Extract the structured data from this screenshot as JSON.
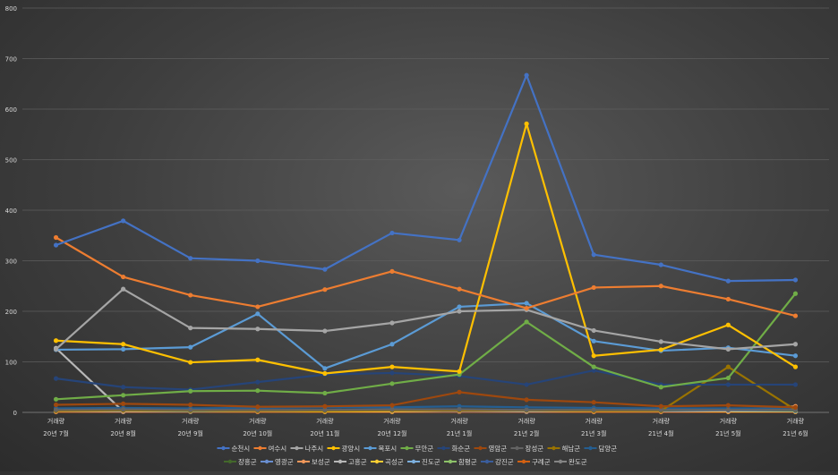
{
  "chart_data": {
    "type": "line",
    "title": "",
    "xlabel": "",
    "ylabel": "",
    "ylim": [
      0,
      800
    ],
    "yticks": [
      0,
      100,
      200,
      300,
      400,
      500,
      600,
      700,
      800
    ],
    "grid": true,
    "legend_position": "bottom",
    "categories": [
      {
        "top": "거래량",
        "bottom": "20년 7월"
      },
      {
        "top": "거래량",
        "bottom": "20년 8월"
      },
      {
        "top": "거래량",
        "bottom": "20년 9월"
      },
      {
        "top": "거래량",
        "bottom": "20년 10월"
      },
      {
        "top": "거래량",
        "bottom": "20년 11월"
      },
      {
        "top": "거래량",
        "bottom": "20년 12월"
      },
      {
        "top": "거래량",
        "bottom": "21년 1월"
      },
      {
        "top": "거래량",
        "bottom": "21년 2월"
      },
      {
        "top": "거래량",
        "bottom": "21년 3월"
      },
      {
        "top": "거래량",
        "bottom": "21년 4월"
      },
      {
        "top": "거래량",
        "bottom": "21년 5월"
      },
      {
        "top": "거래량",
        "bottom": "21년 6월"
      }
    ],
    "series": [
      {
        "name": "순천시",
        "color": "#4472c4",
        "values": [
          331,
          379,
          305,
          300,
          283,
          355,
          341,
          667,
          312,
          292,
          260,
          262
        ]
      },
      {
        "name": "여수시",
        "color": "#ed7d31",
        "values": [
          346,
          268,
          232,
          209,
          243,
          279,
          244,
          206,
          247,
          250,
          224,
          191
        ]
      },
      {
        "name": "나주시",
        "color": "#a5a5a5",
        "values": [
          125,
          244,
          167,
          165,
          161,
          177,
          200,
          203,
          162,
          140,
          125,
          135
        ]
      },
      {
        "name": "광양시",
        "color": "#ffc000",
        "values": [
          142,
          135,
          99,
          104,
          77,
          90,
          81,
          571,
          112,
          124,
          173,
          90
        ]
      },
      {
        "name": "목포시",
        "color": "#5b9bd5",
        "values": [
          124,
          125,
          129,
          195,
          87,
          135,
          209,
          216,
          141,
          122,
          128,
          112
        ]
      },
      {
        "name": "무안군",
        "color": "#70ad47",
        "values": [
          26,
          34,
          42,
          43,
          38,
          57,
          75,
          179,
          90,
          50,
          68,
          235
        ]
      },
      {
        "name": "화순군",
        "color": "#264478",
        "values": [
          67,
          50,
          45,
          60,
          75,
          78,
          72,
          55,
          83,
          55,
          55,
          55
        ]
      },
      {
        "name": "영암군",
        "color": "#9e480e",
        "values": [
          15,
          17,
          15,
          11,
          12,
          14,
          40,
          25,
          20,
          12,
          14,
          10
        ]
      },
      {
        "name": "장성군",
        "color": "#636363",
        "values": [
          5,
          6,
          5,
          5,
          5,
          6,
          6,
          5,
          5,
          5,
          5,
          5
        ]
      },
      {
        "name": "해남군",
        "color": "#997300",
        "values": [
          3,
          4,
          3,
          3,
          3,
          4,
          4,
          4,
          3,
          3,
          90,
          5
        ]
      },
      {
        "name": "담양군",
        "color": "#255e91",
        "values": [
          8,
          9,
          8,
          9,
          10,
          10,
          12,
          10,
          9,
          8,
          8,
          8
        ]
      },
      {
        "name": "장흥군",
        "color": "#43682b",
        "values": [
          4,
          5,
          4,
          4,
          5,
          5,
          6,
          5,
          5,
          4,
          5,
          4
        ]
      },
      {
        "name": "영광군",
        "color": "#698ed0",
        "values": [
          3,
          4,
          3,
          3,
          4,
          4,
          5,
          4,
          4,
          3,
          4,
          3
        ]
      },
      {
        "name": "보성군",
        "color": "#f1975a",
        "values": [
          2,
          3,
          3,
          2,
          3,
          3,
          3,
          3,
          2,
          2,
          3,
          12
        ]
      },
      {
        "name": "고흥군",
        "color": "#b7b7b7",
        "values": [
          127,
          2,
          3,
          2,
          3,
          3,
          3,
          3,
          2,
          2,
          3,
          3
        ]
      },
      {
        "name": "곡성군",
        "color": "#ffcd33",
        "values": [
          2,
          6,
          3,
          2,
          2,
          2,
          3,
          3,
          2,
          2,
          2,
          2
        ]
      },
      {
        "name": "진도군",
        "color": "#7cafdd",
        "values": [
          2,
          2,
          2,
          2,
          2,
          2,
          3,
          2,
          2,
          2,
          2,
          2
        ]
      },
      {
        "name": "함평군",
        "color": "#8cc168",
        "values": [
          2,
          3,
          2,
          2,
          3,
          3,
          3,
          3,
          2,
          2,
          3,
          2
        ]
      },
      {
        "name": "강진군",
        "color": "#3a5d9c",
        "values": [
          2,
          2,
          2,
          2,
          2,
          2,
          2,
          2,
          2,
          2,
          2,
          2
        ]
      },
      {
        "name": "구례군",
        "color": "#d26012",
        "values": [
          1,
          1,
          1,
          1,
          1,
          1,
          1,
          1,
          1,
          1,
          1,
          1
        ]
      },
      {
        "name": "완도군",
        "color": "#848484",
        "values": [
          1,
          1,
          1,
          1,
          1,
          1,
          1,
          1,
          1,
          1,
          1,
          1
        ]
      }
    ]
  }
}
